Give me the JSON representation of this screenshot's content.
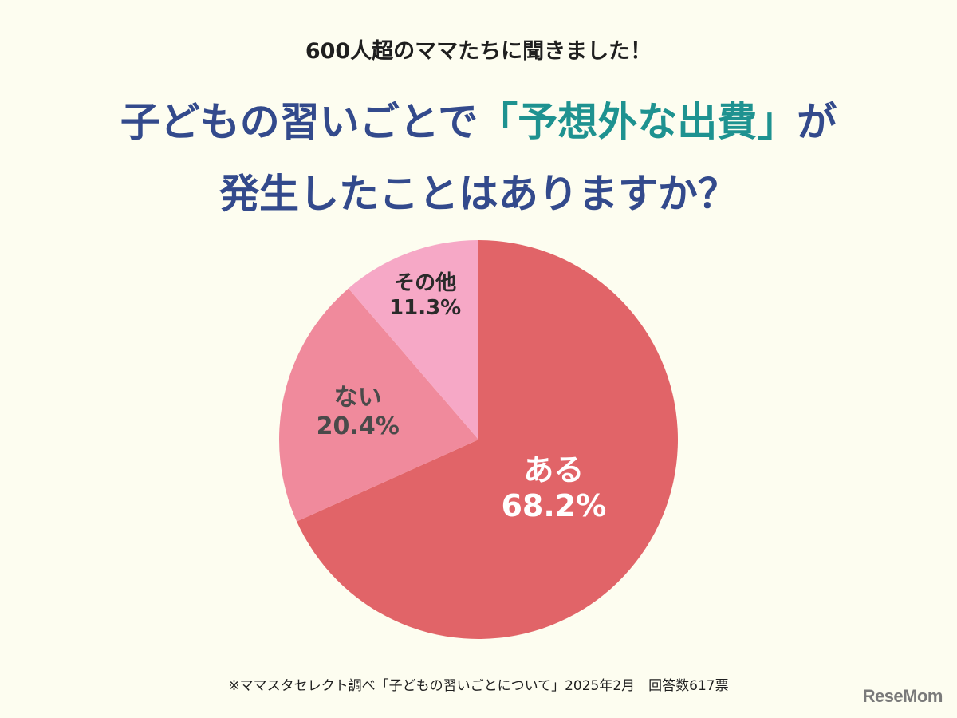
{
  "header": {
    "subtitle": "600人超のママたちに聞きました！",
    "title_part1": "子どもの習いごとで",
    "title_accent": "「予想外な出費」",
    "title_part2": "が",
    "title_line2": "発生したことはありますか？"
  },
  "chart_data": {
    "type": "pie",
    "title": "子どもの習いごとで「予想外な出費」が発生したことはありますか？",
    "slices": [
      {
        "label": "ある",
        "value": 68.2,
        "display": "68.2%",
        "color": "#e16468",
        "text_color": "#ffffff"
      },
      {
        "label": "ない",
        "value": 20.4,
        "display": "20.4%",
        "color": "#f08a9c",
        "text_color": "#4a4a4a"
      },
      {
        "label": "その他",
        "value": 11.3,
        "display": "11.3%",
        "color": "#f6a8c6",
        "text_color": "#2a2a2a"
      }
    ]
  },
  "footer": {
    "note": "※ママスタセレクト調べ「子どもの習いごとについて」2025年2月　回答数617票",
    "logo": "ReseMom"
  }
}
